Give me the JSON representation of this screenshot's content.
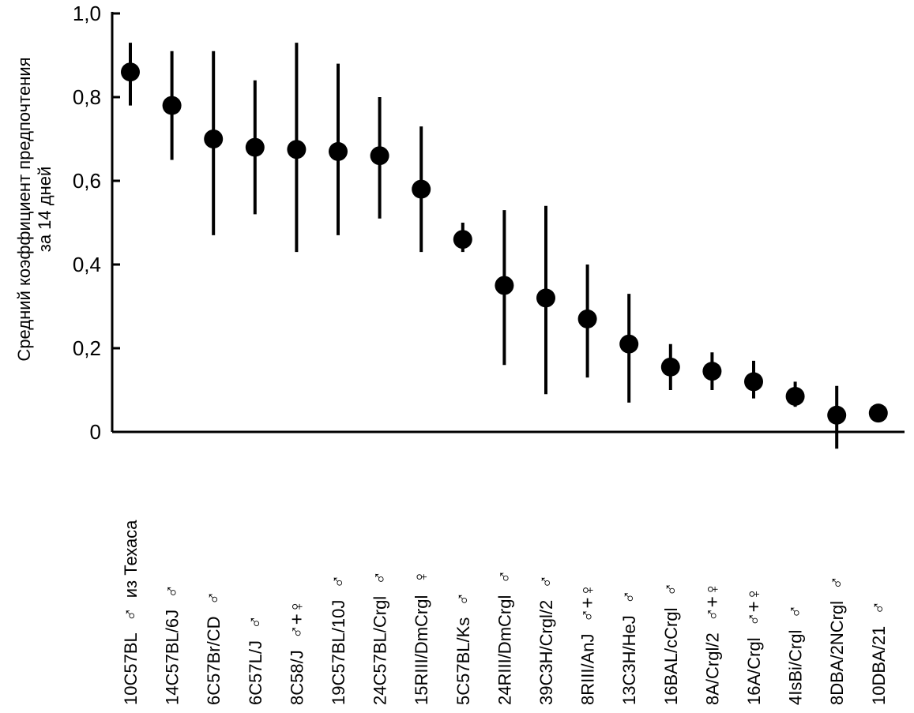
{
  "chart_data": {
    "type": "scatter",
    "ylabel_lines": [
      "Средний коэффициент предпочтения",
      "за 14 дней"
    ],
    "ylim": [
      0,
      1.0
    ],
    "yticks": [
      {
        "value": 0,
        "label": "0"
      },
      {
        "value": 0.2,
        "label": "0,2"
      },
      {
        "value": 0.4,
        "label": "0,4"
      },
      {
        "value": 0.6,
        "label": "0,6"
      },
      {
        "value": 0.8,
        "label": "0,8"
      },
      {
        "value": 1.0,
        "label": "1,0"
      }
    ],
    "grid": false,
    "points": [
      {
        "category": "10C57BL",
        "sex": "♂",
        "note": "из Техаса",
        "mean": 0.86,
        "low": 0.78,
        "high": 0.93
      },
      {
        "category": "14C57BL/6J",
        "sex": "♂",
        "mean": 0.78,
        "low": 0.65,
        "high": 0.91
      },
      {
        "category": "6C57Br/CD",
        "sex": "♂",
        "mean": 0.7,
        "low": 0.47,
        "high": 0.91
      },
      {
        "category": "6C57L/J",
        "sex": "♂",
        "mean": 0.68,
        "low": 0.52,
        "high": 0.84
      },
      {
        "category": "8C58/J",
        "sex": "♂+♀",
        "mean": 0.675,
        "low": 0.43,
        "high": 0.93
      },
      {
        "category": "19C57BL/10J",
        "sex": "♂",
        "mean": 0.67,
        "low": 0.47,
        "high": 0.88
      },
      {
        "category": "24C57BL/Crgl",
        "sex": "♂",
        "mean": 0.66,
        "low": 0.51,
        "high": 0.8
      },
      {
        "category": "15RIII/DmCrgl",
        "sex": "♀",
        "mean": 0.58,
        "low": 0.43,
        "high": 0.73
      },
      {
        "category": "5C57BL/Ks",
        "sex": "♂",
        "mean": 0.46,
        "low": 0.43,
        "high": 0.5
      },
      {
        "category": "24RIII/DmCrgl",
        "sex": "♂",
        "mean": 0.35,
        "low": 0.16,
        "high": 0.53
      },
      {
        "category": "39C3H/Crgl/2",
        "sex": "♂",
        "mean": 0.32,
        "low": 0.09,
        "high": 0.54
      },
      {
        "category": "8RIII/AnJ",
        "sex": "♂+♀",
        "mean": 0.27,
        "low": 0.13,
        "high": 0.4
      },
      {
        "category": "13C3H/HeJ",
        "sex": "♂",
        "mean": 0.21,
        "low": 0.07,
        "high": 0.33
      },
      {
        "category": "16BAL/cCrgl",
        "sex": "♂",
        "mean": 0.155,
        "low": 0.1,
        "high": 0.21
      },
      {
        "category": "8A/Crgl/2",
        "sex": "♂+♀",
        "mean": 0.145,
        "low": 0.1,
        "high": 0.19
      },
      {
        "category": "16A/Crgl",
        "sex": "♂+♀",
        "mean": 0.12,
        "low": 0.08,
        "high": 0.17
      },
      {
        "category": "4IsBi/Crgl",
        "sex": "♂",
        "mean": 0.085,
        "low": 0.06,
        "high": 0.12
      },
      {
        "category": "8DBA/2NCrgl",
        "sex": "♂",
        "mean": 0.04,
        "low": -0.04,
        "high": 0.11
      },
      {
        "category": "10DBA/21",
        "sex": "♂",
        "mean": 0.045,
        "low": 0.045,
        "high": 0.045
      }
    ]
  },
  "colors": {
    "ink": "#000000",
    "background": "#ffffff"
  }
}
